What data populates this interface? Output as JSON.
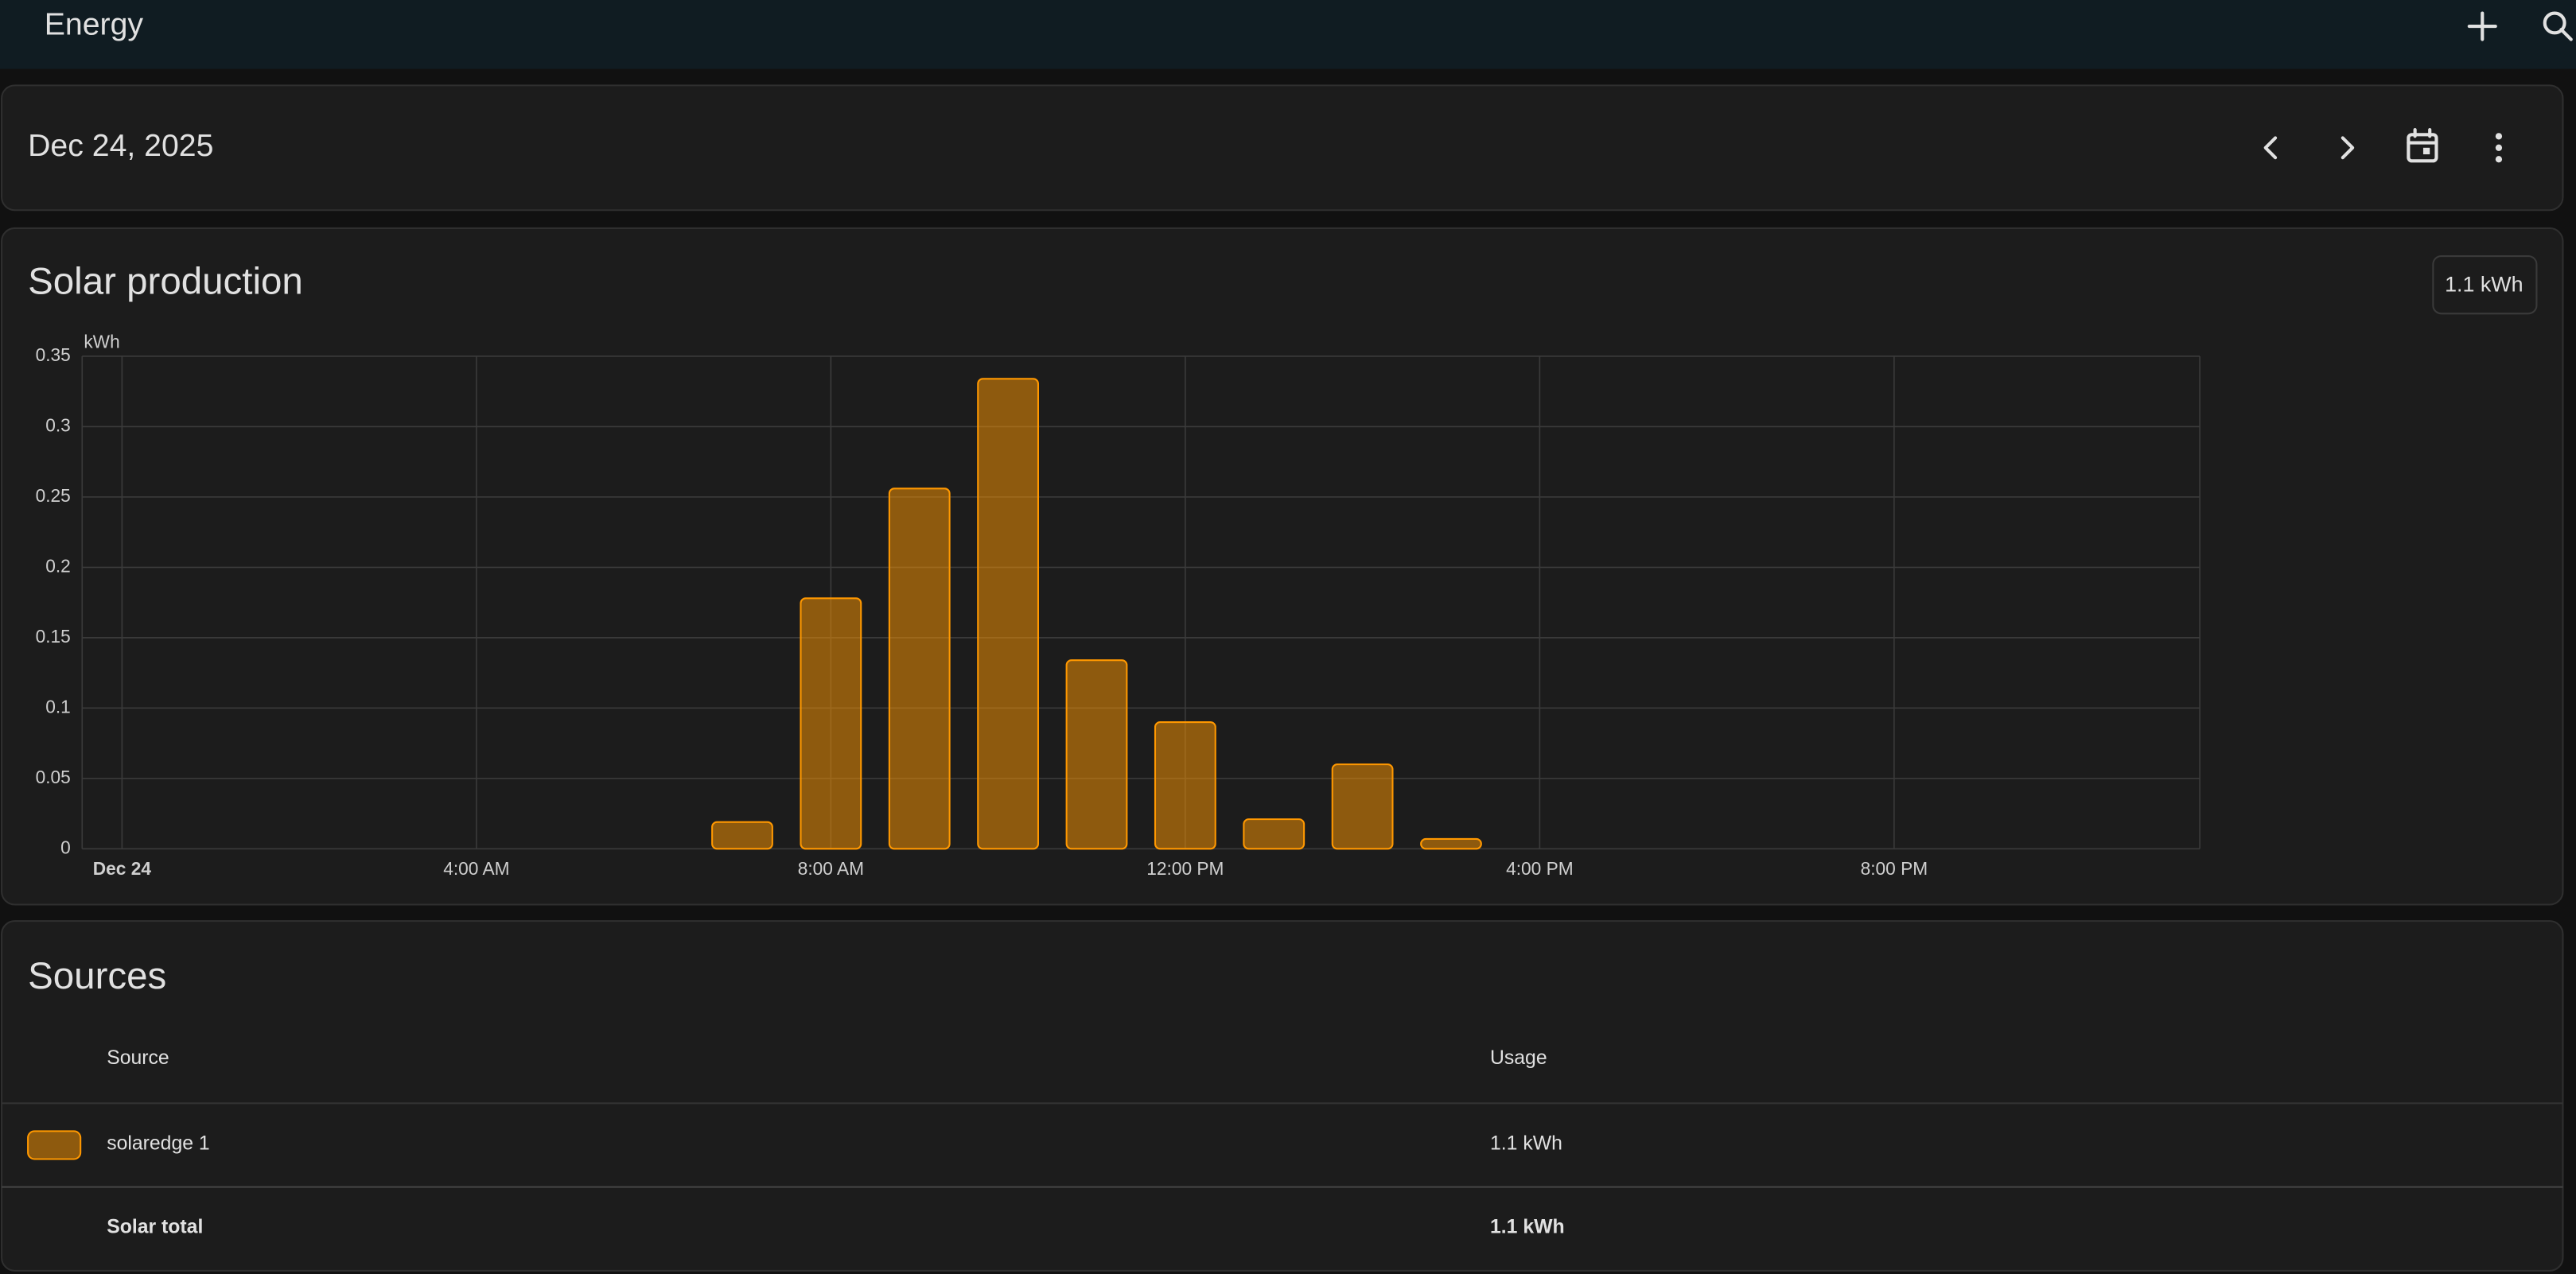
{
  "header": {
    "title": "Energy"
  },
  "date_bar": {
    "date": "Dec 24, 2025"
  },
  "solar_card": {
    "title": "Solar production",
    "total": "1.1 kWh"
  },
  "chart_data": {
    "type": "bar",
    "y_unit": "kWh",
    "x": [
      7,
      8,
      9,
      10,
      11,
      12,
      13,
      14,
      15
    ],
    "values": [
      0.019,
      0.178,
      0.256,
      0.334,
      0.134,
      0.09,
      0.021,
      0.06,
      0.007
    ],
    "color": "#ff9800",
    "xlim": [
      -0.45,
      23.45
    ],
    "xticks": [
      {
        "value": 0,
        "label": "Dec 24"
      },
      {
        "value": 4,
        "label": "4:00 AM"
      },
      {
        "value": 8,
        "label": "8:00 AM"
      },
      {
        "value": 12,
        "label": "12:00 PM"
      },
      {
        "value": 16,
        "label": "4:00 PM"
      },
      {
        "value": 20,
        "label": "8:00 PM"
      }
    ],
    "ylim": [
      0,
      0.35
    ],
    "yticks": [
      0,
      0.05,
      0.1,
      0.15,
      0.2,
      0.25,
      0.3,
      0.35
    ],
    "grid": true
  },
  "sources": {
    "title": "Sources",
    "columns": [
      "Source",
      "Usage"
    ],
    "rows": [
      [
        "solaredge 1",
        "1.1 kWh"
      ]
    ],
    "total": [
      "Solar total",
      "1.1 kWh"
    ]
  }
}
